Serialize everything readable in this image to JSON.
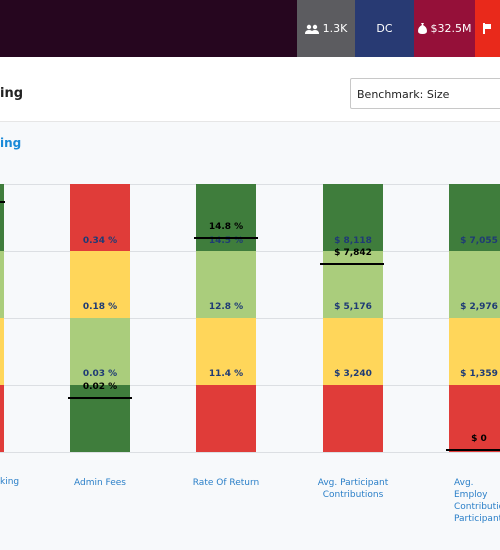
{
  "topbar": {
    "participants": "1.3K",
    "plan_type": "DC",
    "assets": "$32.5M"
  },
  "header": {
    "title_fragment": "ing",
    "benchmark_select": "Benchmark: Size"
  },
  "section": {
    "title_fragment": "ing"
  },
  "first_col_label_fragment": "king",
  "columns": [
    {
      "label": "Admin Fees",
      "cells": [
        "0.34 %",
        "0.18 %",
        "0.03 %",
        ""
      ],
      "marker_label": "0.02 %"
    },
    {
      "label": "Rate Of Return",
      "cells": [
        "14.5 %",
        "12.8 %",
        "11.4 %",
        ""
      ],
      "marker_label": "14.8 %"
    },
    {
      "label_line1": "Avg. Participant",
      "label_line2": "Contributions",
      "cells": [
        "$ 8,118",
        "$ 5,176",
        "$ 3,240",
        ""
      ],
      "marker_label": "$ 7,842"
    },
    {
      "label_line1": "Avg. Employ",
      "label_line2": "Contribution",
      "label_line3": "Participant",
      "cells": [
        "$ 7,055",
        "$ 2,976",
        "$ 1,359",
        ""
      ],
      "marker_label": "$ 0"
    }
  ],
  "colors": {
    "green_dark": "#3f7d3c",
    "green_light": "#aacd7c",
    "yellow": "#ffd65a",
    "red": "#e03c39",
    "accent_blue": "#1a8ad8"
  }
}
